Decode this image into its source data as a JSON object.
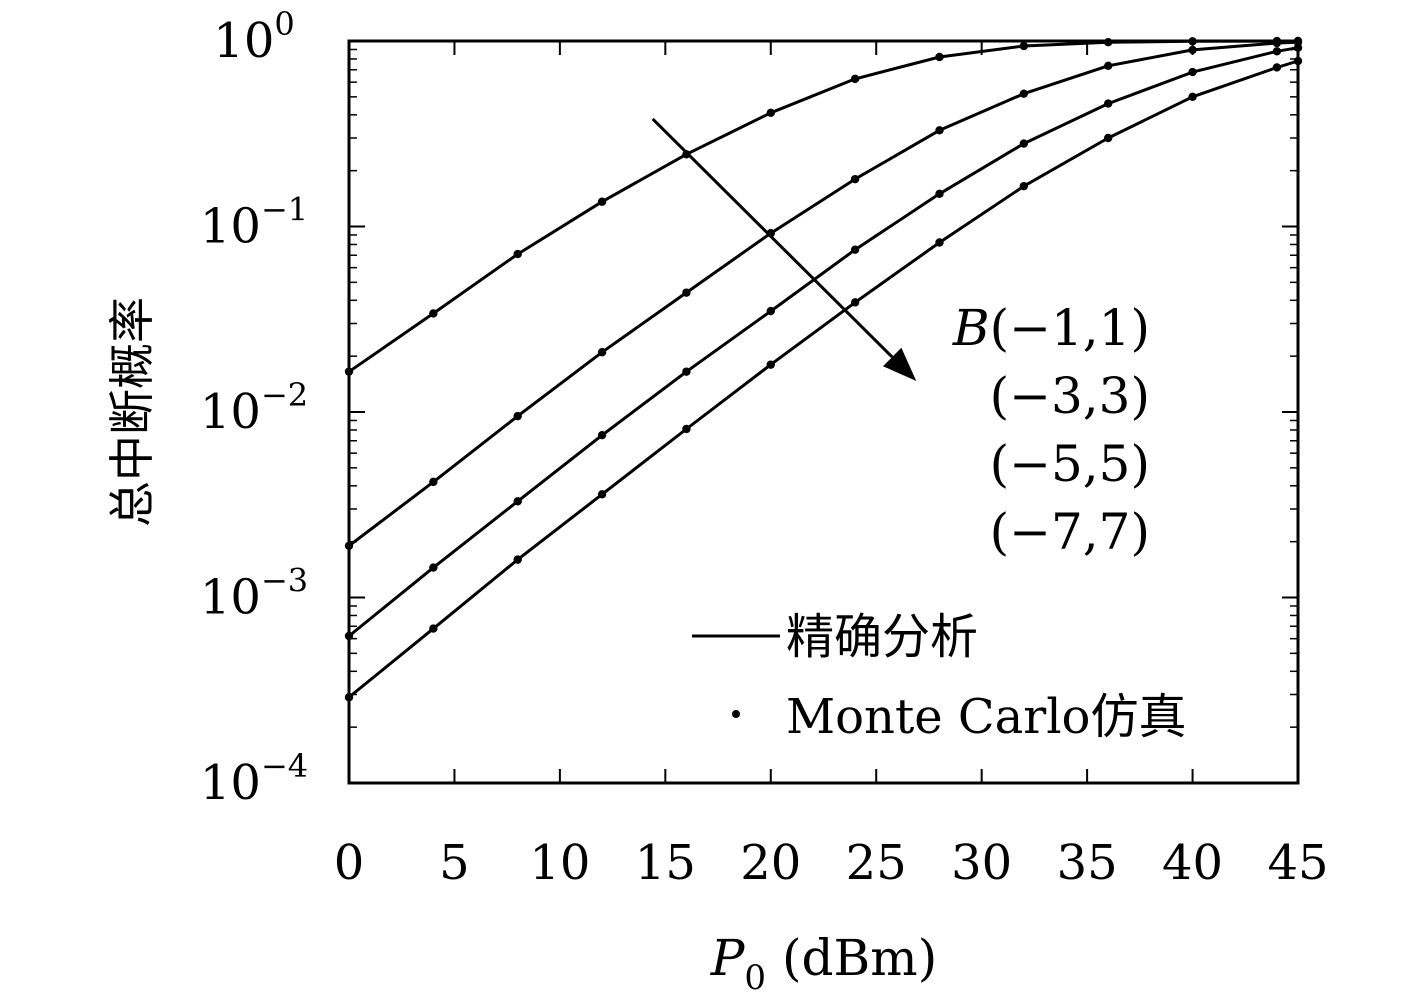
{
  "chart_data": {
    "type": "line",
    "ylabel": "总中断概率",
    "xlabel": {
      "symbol": "P",
      "subscript": "0",
      "unit": "(dBm)"
    },
    "xlim": [
      0,
      45
    ],
    "ylim": [
      0.0001,
      1
    ],
    "yscale": "log",
    "x_ticks": [
      0,
      5,
      10,
      15,
      20,
      25,
      30,
      35,
      40,
      45
    ],
    "y_ticks": [
      {
        "base": "10",
        "exp": "0",
        "value": 1
      },
      {
        "base": "10",
        "exp": "−1",
        "value": 0.1
      },
      {
        "base": "10",
        "exp": "−2",
        "value": 0.01
      },
      {
        "base": "10",
        "exp": "−3",
        "value": 0.001
      },
      {
        "base": "10",
        "exp": "−4",
        "value": 0.0001
      }
    ],
    "legend": {
      "placement": "bottom-right",
      "entries": [
        {
          "label": "精确分析",
          "marker": "line"
        },
        {
          "label": "Monte Carlo仿真",
          "marker": "dot"
        }
      ]
    },
    "annotation": {
      "arrow_from": {
        "x": 14.4,
        "y": 0.38
      },
      "arrow_to": {
        "x": 26.9,
        "y": 0.0147
      },
      "labels": [
        {
          "prefix": "B",
          "text": "(−1,1)"
        },
        {
          "prefix": "",
          "text": "(−3,3)"
        },
        {
          "prefix": "",
          "text": "(−5,5)"
        },
        {
          "prefix": "",
          "text": "(−7,7)"
        }
      ]
    },
    "x": [
      0,
      4,
      8,
      12,
      16,
      20,
      24,
      28,
      32,
      36,
      40,
      44,
      45
    ],
    "series": [
      {
        "values": [
          0.0165,
          0.034,
          0.071,
          0.136,
          0.245,
          0.41,
          0.625,
          0.82,
          0.94,
          0.985,
          0.996,
          0.999,
          1.0
        ]
      },
      {
        "values": [
          0.0019,
          0.0042,
          0.0095,
          0.021,
          0.044,
          0.092,
          0.18,
          0.33,
          0.52,
          0.735,
          0.895,
          0.975,
          0.985
        ]
      },
      {
        "values": [
          0.00062,
          0.00145,
          0.0033,
          0.0075,
          0.0165,
          0.035,
          0.075,
          0.15,
          0.28,
          0.46,
          0.68,
          0.88,
          0.92
        ]
      },
      {
        "values": [
          0.00029,
          0.00068,
          0.0016,
          0.0036,
          0.0081,
          0.018,
          0.039,
          0.082,
          0.165,
          0.3,
          0.5,
          0.72,
          0.78
        ]
      }
    ],
    "style": {
      "line_color": "#000000",
      "background": "#ffffff"
    }
  }
}
